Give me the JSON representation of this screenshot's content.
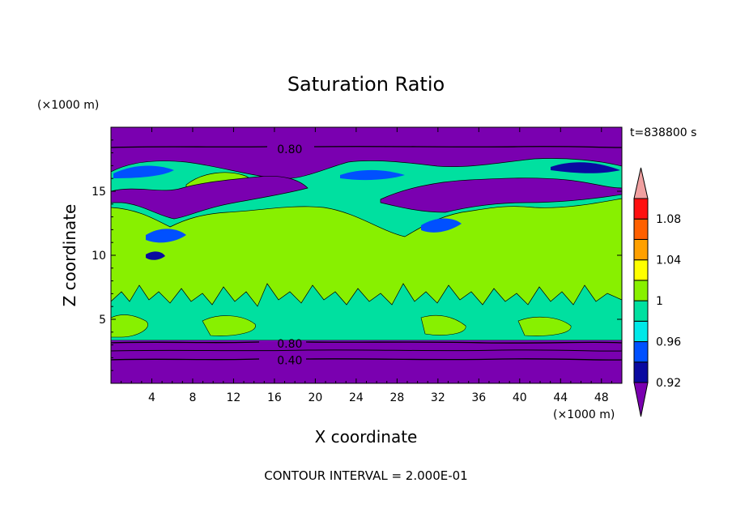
{
  "chart_data": {
    "type": "heatmap",
    "title": "Saturation Ratio",
    "xlabel": "X coordinate",
    "ylabel": "Z coordinate",
    "x_unit": "(×1000 m)",
    "y_unit": "(×1000 m)",
    "time_label": "t=838800 s",
    "footer": "CONTOUR INTERVAL = 2.000E-01",
    "xlim": [
      0,
      50
    ],
    "ylim": [
      0,
      20
    ],
    "xticks": [
      4,
      8,
      12,
      16,
      20,
      24,
      28,
      32,
      36,
      40,
      44,
      48
    ],
    "yticks": [
      5,
      10,
      15
    ],
    "contour_labels": [
      {
        "text": "0.80",
        "x": 17.5,
        "z": 18.3
      },
      {
        "text": "0.80",
        "x": 17.5,
        "z": 3.1
      },
      {
        "text": "0.40",
        "x": 17.5,
        "z": 1.8
      }
    ],
    "colorbar": {
      "levels": [
        0.92,
        0.94,
        0.96,
        0.98,
        1.0,
        1.02,
        1.04,
        1.06,
        1.08,
        1.1
      ],
      "tick_labels": [
        "0.92",
        "0.96",
        "1",
        "1.04",
        "1.08"
      ],
      "colors": [
        "#7a00b0",
        "#0a0aa0",
        "#0050ff",
        "#00e8e8",
        "#00e0a0",
        "#88f000",
        "#ffff00",
        "#ffa000",
        "#ff6000",
        "#ff1010",
        "#f0a0a0"
      ]
    }
  }
}
